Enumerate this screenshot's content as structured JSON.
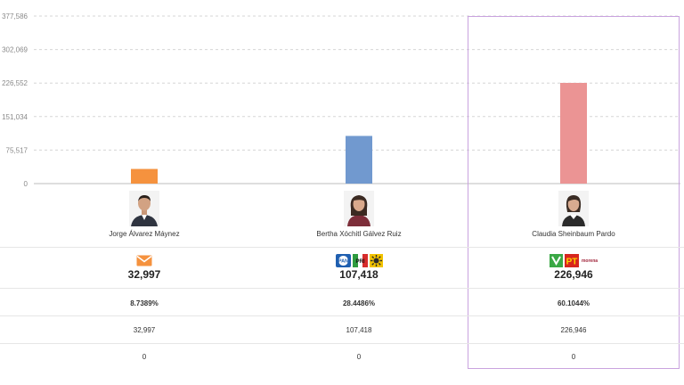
{
  "chart_data": {
    "type": "bar",
    "categories": [
      "Jorge Álvarez Máynez",
      "Bertha Xóchitl Gálvez Ruiz",
      "Claudia Sheinbaum Pardo"
    ],
    "values": [
      32997,
      107418,
      226946
    ],
    "colors": [
      "#f5923e",
      "#7199cf",
      "#eb9494"
    ],
    "ylim": [
      0,
      377586
    ],
    "yticks": [
      0,
      75517,
      151034,
      226552,
      302069,
      377586
    ],
    "ytick_labels": [
      "0",
      "75,517",
      "151,034",
      "226,552",
      "302,069",
      "377,586"
    ],
    "grid": true
  },
  "candidates": [
    {
      "name": "Jorge Álvarez Máynez",
      "logos": [
        {
          "icon": "mc-envelope-logo",
          "color": "#f5923e"
        }
      ],
      "votes_display": "32,997",
      "percent": "8.7389%",
      "count": "32,997",
      "extra": "0"
    },
    {
      "name": "Bertha Xóchitl Gálvez Ruiz",
      "logos": [
        {
          "icon": "pan-logo",
          "color": "#1f5fb0",
          "text": "PAN"
        },
        {
          "icon": "pri-logo",
          "color": "#d62b2b",
          "text": "PRI"
        },
        {
          "icon": "prd-logo",
          "color": "#f2c300"
        }
      ],
      "votes_display": "107,418",
      "percent": "28.4486%",
      "count": "107,418",
      "extra": "0"
    },
    {
      "name": "Claudia Sheinbaum Pardo",
      "logos": [
        {
          "icon": "pvem-logo",
          "color": "#3aa845"
        },
        {
          "icon": "pt-logo",
          "color": "#d7261e",
          "text": "PT"
        },
        {
          "icon": "morena-logo",
          "color": "#a0243a",
          "text": "morena"
        }
      ],
      "votes_display": "226,946",
      "percent": "60.1044%",
      "count": "226,946",
      "extra": "0"
    }
  ],
  "highlight_color": "#c9a3df"
}
